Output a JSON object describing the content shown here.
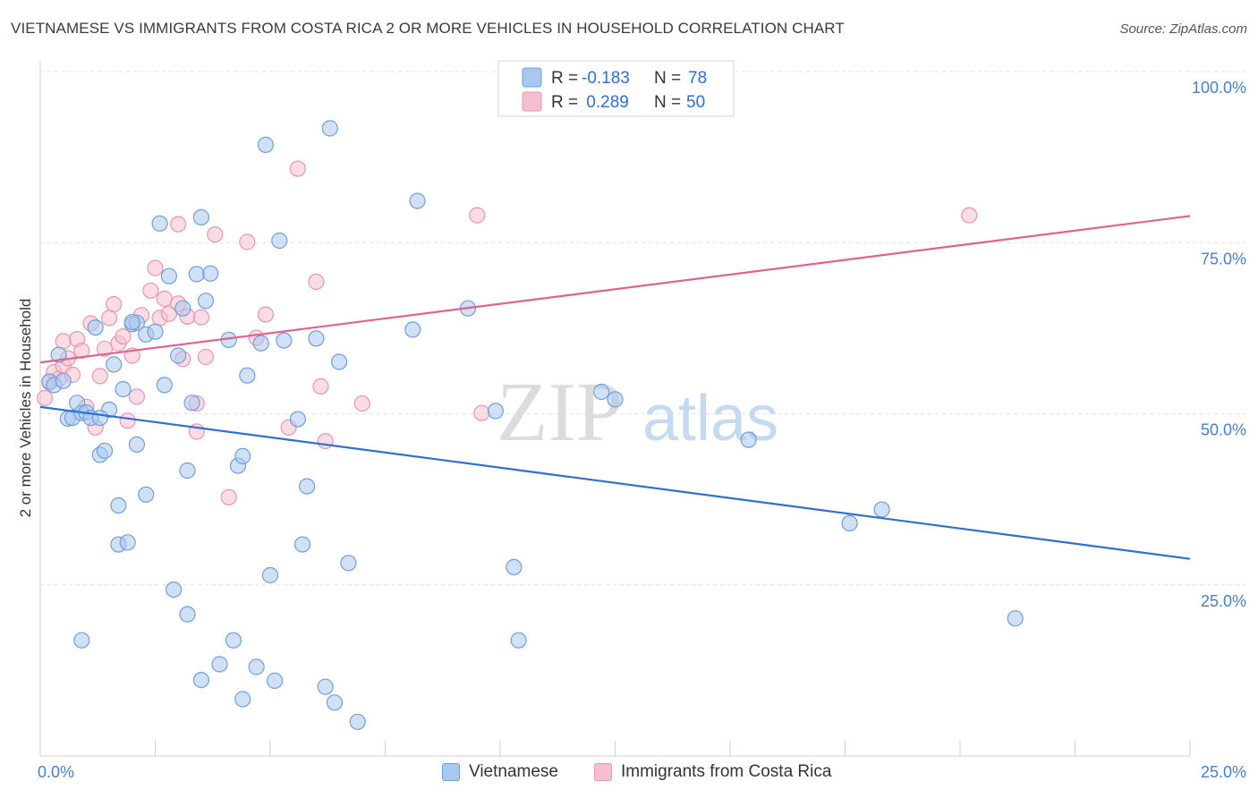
{
  "header": {
    "title": "VIETNAMESE VS IMMIGRANTS FROM COSTA RICA 2 OR MORE VEHICLES IN HOUSEHOLD CORRELATION CHART",
    "source": "Source: ZipAtlas.com"
  },
  "watermark": {
    "zip": "ZIP",
    "atlas": "atlas"
  },
  "legend": {
    "rows": [
      {
        "r_label": "R =",
        "r_value": "-0.183",
        "n_label": "N =",
        "n_value": "78"
      },
      {
        "r_label": "R =",
        "r_value": " 0.289",
        "n_label": "N =",
        "n_value": "50"
      }
    ]
  },
  "bottom_legend": {
    "series1": "Vietnamese",
    "series2": "Immigrants from Costa Rica"
  },
  "colors": {
    "blue_fill": "#a9c8ef",
    "blue_stroke": "#6f9fdd",
    "blue_line": "#2f6fd0",
    "pink_fill": "#f6bfd0",
    "pink_stroke": "#e896b2",
    "pink_line": "#e0628e",
    "tick_text": "#4a7fc8"
  },
  "chart_data": {
    "type": "scatter",
    "title": "VIETNAMESE VS IMMIGRANTS FROM COSTA RICA 2 OR MORE VEHICLES IN HOUSEHOLD CORRELATION CHART",
    "xlabel": "",
    "ylabel": "2 or more Vehicles in Household",
    "xlim": [
      0,
      25
    ],
    "ylim": [
      0,
      100
    ],
    "x_tick_labels": [
      "0.0%",
      "25.0%"
    ],
    "y_tick_values": [
      25,
      50,
      75,
      100
    ],
    "y_tick_labels": [
      "25.0%",
      "50.0%",
      "75.0%",
      "100.0%"
    ],
    "grid": true,
    "series": [
      {
        "name": "Vietnamese",
        "color": "#6f9fdd",
        "r": -0.183,
        "n": 78,
        "trend": {
          "x": [
            0,
            25
          ],
          "y": [
            51.0,
            28.8
          ]
        },
        "points": [
          [
            0.2,
            54.7
          ],
          [
            0.3,
            54.2
          ],
          [
            0.4,
            58.6
          ],
          [
            0.5,
            54.8
          ],
          [
            0.6,
            49.3
          ],
          [
            0.7,
            49.4
          ],
          [
            0.8,
            51.6
          ],
          [
            0.9,
            50.1
          ],
          [
            1.0,
            50.2
          ],
          [
            1.1,
            49.4
          ],
          [
            1.2,
            62.6
          ],
          [
            1.3,
            44.0
          ],
          [
            1.4,
            44.6
          ],
          [
            1.5,
            50.6
          ],
          [
            1.6,
            57.2
          ],
          [
            1.7,
            36.6
          ],
          [
            1.7,
            30.9
          ],
          [
            1.8,
            53.6
          ],
          [
            1.9,
            31.2
          ],
          [
            2.0,
            63.1
          ],
          [
            2.1,
            63.3
          ],
          [
            2.1,
            45.5
          ],
          [
            2.3,
            38.2
          ],
          [
            2.3,
            61.6
          ],
          [
            2.5,
            62.0
          ],
          [
            2.6,
            77.8
          ],
          [
            2.7,
            54.2
          ],
          [
            2.8,
            70.1
          ],
          [
            2.9,
            24.3
          ],
          [
            3.0,
            58.5
          ],
          [
            3.1,
            65.4
          ],
          [
            3.2,
            20.7
          ],
          [
            3.2,
            41.7
          ],
          [
            3.3,
            51.6
          ],
          [
            3.4,
            70.4
          ],
          [
            3.5,
            11.1
          ],
          [
            3.5,
            78.7
          ],
          [
            3.6,
            66.5
          ],
          [
            3.7,
            70.5
          ],
          [
            3.9,
            13.4
          ],
          [
            4.1,
            60.8
          ],
          [
            4.2,
            16.9
          ],
          [
            4.3,
            42.4
          ],
          [
            4.4,
            8.3
          ],
          [
            4.4,
            43.8
          ],
          [
            4.5,
            55.6
          ],
          [
            4.7,
            13.0
          ],
          [
            4.8,
            60.3
          ],
          [
            4.9,
            89.3
          ],
          [
            5.0,
            26.4
          ],
          [
            5.1,
            11.0
          ],
          [
            5.2,
            75.3
          ],
          [
            5.3,
            60.7
          ],
          [
            5.6,
            49.2
          ],
          [
            5.7,
            30.9
          ],
          [
            5.8,
            39.4
          ],
          [
            6.0,
            61.0
          ],
          [
            6.2,
            10.1
          ],
          [
            6.3,
            91.7
          ],
          [
            6.4,
            7.8
          ],
          [
            6.5,
            57.6
          ],
          [
            6.7,
            28.2
          ],
          [
            6.9,
            5.0
          ],
          [
            8.1,
            62.3
          ],
          [
            8.2,
            81.1
          ],
          [
            9.3,
            65.4
          ],
          [
            9.9,
            50.4
          ],
          [
            10.3,
            27.6
          ],
          [
            10.4,
            16.9
          ],
          [
            12.2,
            53.2
          ],
          [
            12.5,
            52.1
          ],
          [
            15.4,
            46.2
          ],
          [
            17.6,
            34.0
          ],
          [
            18.3,
            36.0
          ],
          [
            21.2,
            20.1
          ],
          [
            0.9,
            16.9
          ],
          [
            1.3,
            49.4
          ],
          [
            2.0,
            63.4
          ]
        ]
      },
      {
        "name": "Immigrants from Costa Rica",
        "color": "#e896b2",
        "r": 0.289,
        "n": 50,
        "trend": {
          "x": [
            0,
            25
          ],
          "y": [
            57.5,
            78.9
          ]
        },
        "points": [
          [
            0.1,
            52.3
          ],
          [
            0.2,
            54.6
          ],
          [
            0.3,
            56.1
          ],
          [
            0.4,
            55.1
          ],
          [
            0.5,
            60.6
          ],
          [
            0.5,
            57.0
          ],
          [
            0.6,
            58.1
          ],
          [
            0.7,
            55.7
          ],
          [
            0.8,
            60.9
          ],
          [
            0.9,
            59.2
          ],
          [
            1.0,
            51.0
          ],
          [
            1.1,
            63.2
          ],
          [
            1.2,
            48.0
          ],
          [
            1.3,
            55.5
          ],
          [
            1.4,
            59.5
          ],
          [
            1.5,
            64.0
          ],
          [
            1.6,
            66.0
          ],
          [
            1.7,
            60.3
          ],
          [
            1.8,
            61.3
          ],
          [
            1.9,
            49.0
          ],
          [
            2.0,
            58.5
          ],
          [
            2.1,
            52.5
          ],
          [
            2.2,
            64.4
          ],
          [
            2.4,
            68.0
          ],
          [
            2.5,
            71.3
          ],
          [
            2.6,
            64.0
          ],
          [
            2.7,
            66.8
          ],
          [
            2.8,
            64.6
          ],
          [
            3.0,
            66.1
          ],
          [
            3.1,
            58.0
          ],
          [
            3.2,
            64.2
          ],
          [
            3.4,
            51.5
          ],
          [
            3.4,
            47.4
          ],
          [
            3.5,
            64.1
          ],
          [
            3.6,
            58.3
          ],
          [
            3.8,
            76.2
          ],
          [
            4.1,
            37.8
          ],
          [
            4.5,
            75.1
          ],
          [
            4.7,
            61.1
          ],
          [
            4.9,
            64.5
          ],
          [
            5.4,
            48.0
          ],
          [
            5.6,
            85.8
          ],
          [
            6.0,
            69.3
          ],
          [
            6.1,
            54.0
          ],
          [
            6.2,
            46.0
          ],
          [
            7.0,
            51.5
          ],
          [
            9.5,
            79.0
          ],
          [
            9.6,
            50.1
          ],
          [
            20.2,
            79.0
          ],
          [
            3.0,
            77.7
          ]
        ]
      }
    ]
  }
}
